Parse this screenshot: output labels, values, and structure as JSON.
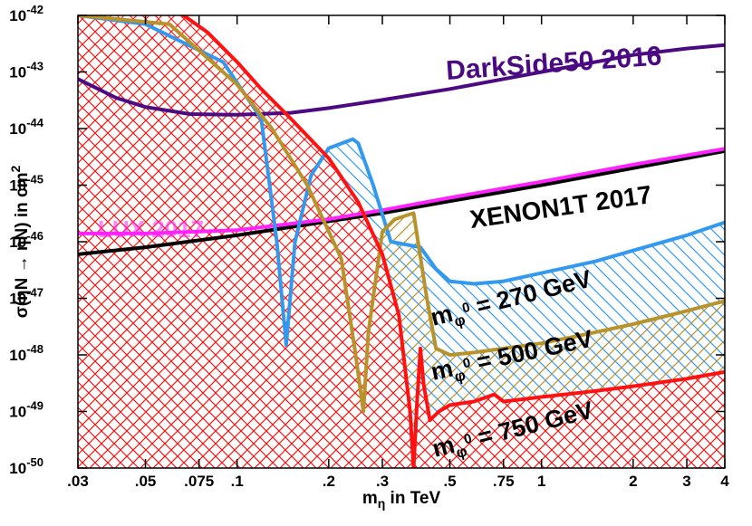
{
  "chart_data": {
    "type": "line",
    "xlabel": "m_η in TeV",
    "ylabel": "σ(ηN → ηN) in cm²",
    "x_scale": "log",
    "y_scale": "log",
    "xlim": [
      0.03,
      4
    ],
    "ylim": [
      1e-50,
      1e-42
    ],
    "grid": false,
    "x_ticks": [
      {
        "value": 0.03,
        "label": ".03"
      },
      {
        "value": 0.05,
        "label": ".05"
      },
      {
        "value": 0.075,
        "label": ".075"
      },
      {
        "value": 0.1,
        "label": ".1"
      },
      {
        "value": 0.2,
        "label": ".2"
      },
      {
        "value": 0.3,
        "label": ".3"
      },
      {
        "value": 0.5,
        "label": ".5"
      },
      {
        "value": 0.75,
        "label": ".75"
      },
      {
        "value": 1,
        "label": "1"
      },
      {
        "value": 2,
        "label": "2"
      },
      {
        "value": 3,
        "label": "3"
      },
      {
        "value": 4,
        "label": "4"
      }
    ],
    "y_ticks": [
      {
        "value": 1e-50,
        "base": "10",
        "exp": "-50"
      },
      {
        "value": 1e-49,
        "base": "10",
        "exp": "-49"
      },
      {
        "value": 1e-48,
        "base": "10",
        "exp": "-48"
      },
      {
        "value": 1e-47,
        "base": "10",
        "exp": "-47"
      },
      {
        "value": 1e-46,
        "base": "10",
        "exp": "-46"
      },
      {
        "value": 1e-45,
        "base": "10",
        "exp": "-45"
      },
      {
        "value": 1e-44,
        "base": "10",
        "exp": "-44"
      },
      {
        "value": 1e-43,
        "base": "10",
        "exp": "-43"
      },
      {
        "value": 1e-42,
        "base": "10",
        "exp": "-42"
      }
    ],
    "series": [
      {
        "name": "DarkSide50 2016",
        "color": "#4b0a82",
        "fill": false,
        "points": [
          [
            0.03,
            7.5e-44
          ],
          [
            0.04,
            3.5e-44
          ],
          [
            0.05,
            2.4e-44
          ],
          [
            0.07,
            1.8e-44
          ],
          [
            0.1,
            1.75e-44
          ],
          [
            0.15,
            1.9e-44
          ],
          [
            0.2,
            2.3e-44
          ],
          [
            0.3,
            3.2e-44
          ],
          [
            0.5,
            5e-44
          ],
          [
            0.75,
            7.5e-44
          ],
          [
            1,
            1e-43
          ],
          [
            2,
            2e-43
          ],
          [
            3,
            2.6e-43
          ],
          [
            4,
            3e-43
          ]
        ]
      },
      {
        "name": "XENON1T 2017",
        "color": "#000000",
        "fill": false,
        "points": [
          [
            0.03,
            6e-47
          ],
          [
            0.05,
            8e-47
          ],
          [
            0.1,
            1.3e-46
          ],
          [
            0.2,
            2.3e-46
          ],
          [
            0.3,
            3.2e-46
          ],
          [
            0.5,
            5.2e-46
          ],
          [
            1,
            1e-45
          ],
          [
            2,
            2e-45
          ],
          [
            4,
            4e-45
          ]
        ]
      },
      {
        "name": "LUX 2017",
        "color": "#ff22ff",
        "fill": false,
        "points": [
          [
            0.03,
            1.4e-46
          ],
          [
            0.05,
            1.4e-46
          ],
          [
            0.1,
            1.6e-46
          ],
          [
            0.2,
            2.5e-46
          ],
          [
            0.3,
            3.6e-46
          ],
          [
            0.5,
            6e-46
          ],
          [
            1,
            1.15e-45
          ],
          [
            2,
            2.3e-45
          ],
          [
            4,
            4.4e-45
          ]
        ]
      },
      {
        "name": "m_φ0 = 270 GeV",
        "color": "#3399ee",
        "fill": true,
        "points": [
          [
            0.03,
            1e-42
          ],
          [
            0.05,
            7e-43
          ],
          [
            0.09,
            1.5e-43
          ],
          [
            0.12,
            1.5e-44
          ],
          [
            0.135,
            1e-46
          ],
          [
            0.145,
            1.5e-48
          ],
          [
            0.155,
            1e-46
          ],
          [
            0.175,
            1.5e-45
          ],
          [
            0.2,
            4.5e-45
          ],
          [
            0.24,
            6.5e-45
          ],
          [
            0.25,
            5.5e-45
          ],
          [
            0.28,
            1e-45
          ],
          [
            0.32,
            1e-46
          ],
          [
            0.4,
            8e-47
          ],
          [
            0.45,
            3.3e-47
          ],
          [
            0.5,
            2e-47
          ],
          [
            0.6,
            1.8e-47
          ],
          [
            0.75,
            2e-47
          ],
          [
            1,
            2.8e-47
          ],
          [
            1.5,
            4.5e-47
          ],
          [
            2,
            7e-47
          ],
          [
            3,
            1.3e-46
          ],
          [
            4,
            2.2e-46
          ]
        ]
      },
      {
        "name": "m_φ0 = 500 GeV",
        "color": "#b8922a",
        "fill": true,
        "points": [
          [
            0.03,
            1e-42
          ],
          [
            0.06,
            7e-43
          ],
          [
            0.1,
            6e-44
          ],
          [
            0.13,
            1e-44
          ],
          [
            0.17,
            1e-45
          ],
          [
            0.22,
            5e-47
          ],
          [
            0.245,
            1e-48
          ],
          [
            0.26,
            1e-49
          ],
          [
            0.27,
            2.5e-48
          ],
          [
            0.3,
            1.5e-46
          ],
          [
            0.33,
            2.5e-46
          ],
          [
            0.38,
            3.2e-46
          ],
          [
            0.42,
            1e-47
          ],
          [
            0.45,
            1.3e-48
          ],
          [
            0.5,
            1e-48
          ],
          [
            0.6,
            1.1e-48
          ],
          [
            0.75,
            1.3e-48
          ],
          [
            1,
            1.6e-48
          ],
          [
            1.5,
            2.5e-48
          ],
          [
            2,
            3.5e-48
          ],
          [
            3,
            6e-48
          ],
          [
            4,
            9e-48
          ]
        ]
      },
      {
        "name": "m_φ0 = 750 GeV",
        "color": "#ff1111",
        "fill": true,
        "points": [
          [
            0.03,
            1e-42
          ],
          [
            0.04,
            2.5e-42
          ],
          [
            0.06,
            1.5e-42
          ],
          [
            0.08,
            5e-43
          ],
          [
            0.1,
            1.5e-43
          ],
          [
            0.12,
            5e-44
          ],
          [
            0.15,
            1.5e-44
          ],
          [
            0.2,
            3e-45
          ],
          [
            0.25,
            5e-46
          ],
          [
            0.3,
            6e-47
          ],
          [
            0.34,
            5e-48
          ],
          [
            0.37,
            1e-49
          ],
          [
            0.38,
            1e-50
          ],
          [
            0.39,
            1.5e-49
          ],
          [
            0.4,
            1.3e-48
          ],
          [
            0.41,
            3e-49
          ],
          [
            0.43,
            7e-50
          ],
          [
            0.46,
            1e-49
          ],
          [
            0.5,
            1.3e-49
          ],
          [
            0.6,
            1.5e-49
          ],
          [
            0.7,
            2e-49
          ],
          [
            0.75,
            1.5e-49
          ],
          [
            1,
            1.8e-49
          ],
          [
            1.5,
            2.3e-49
          ],
          [
            2,
            2.8e-49
          ],
          [
            3,
            3.8e-49
          ],
          [
            4,
            5e-49
          ]
        ]
      }
    ],
    "annotations": [
      {
        "id": "darkside",
        "text": "DarkSide50 2016",
        "color": "#4b0a82"
      },
      {
        "id": "xenon",
        "text": "XENON1T 2017",
        "color": "#000000"
      },
      {
        "id": "lux",
        "text": "LUX 2017",
        "color": "#ff22ff"
      },
      {
        "id": "m270",
        "main": "m",
        "sub": "φ",
        "sup": "0",
        "rest": " = 270 GeV",
        "color": "#000000"
      },
      {
        "id": "m500",
        "main": "m",
        "sub": "φ",
        "sup": "0",
        "rest": " = 500 GeV",
        "color": "#000000"
      },
      {
        "id": "m750",
        "main": "m",
        "sub": "φ",
        "sup": "0",
        "rest": " = 750 GeV",
        "color": "#000000"
      }
    ]
  }
}
